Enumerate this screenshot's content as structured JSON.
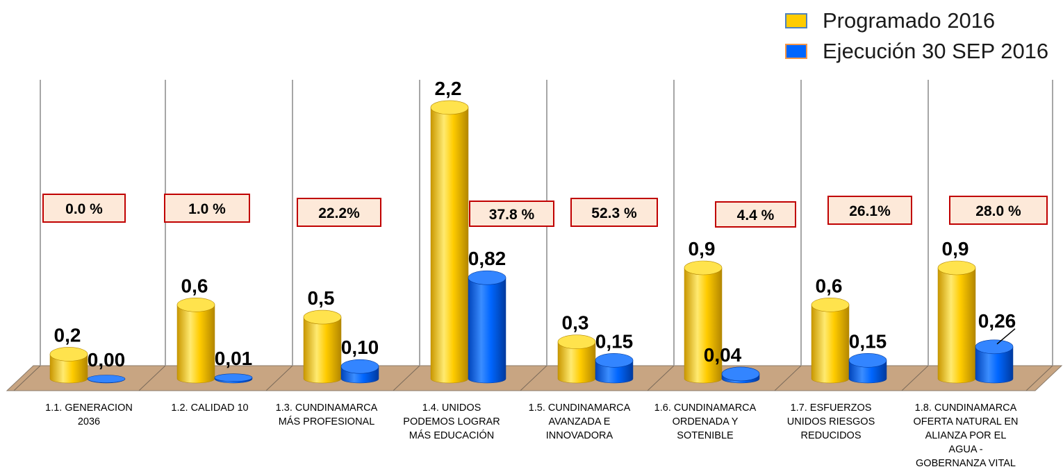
{
  "chart_data": {
    "type": "bar",
    "title": "",
    "xlabel": "",
    "ylabel": "",
    "ylim": [
      0,
      2.4
    ],
    "grid": false,
    "legend_position": "top-right",
    "categories": [
      "1.1. GENERACION 2036",
      "1.2. CALIDAD 10",
      "1.3. CUNDINAMARCA MÁS PROFESIONAL",
      "1.4. UNIDOS PODEMOS LOGRAR MÁS EDUCACIÓN",
      "1.5. CUNDINAMARCA AVANZADA E INNOVADORA",
      "1.6. CUNDINAMARCA ORDENADA Y SOTENIBLE",
      "1.7. ESFUERZOS UNIDOS RIESGOS REDUCIDOS",
      "1.8. CUNDINAMARCA OFERTA NATURAL EN ALIANZA POR EL AGUA - GOBERNANZA VITAL"
    ],
    "category_label_lines": [
      [
        "1.1. GENERACION",
        "2036"
      ],
      [
        "1.2. CALIDAD 10"
      ],
      [
        "1.3. CUNDINAMARCA",
        "MÁS PROFESIONAL"
      ],
      [
        "1.4. UNIDOS",
        "PODEMOS LOGRAR",
        "MÁS EDUCACIÓN"
      ],
      [
        "1.5. CUNDINAMARCA",
        "AVANZADA E",
        "INNOVADORA"
      ],
      [
        "1.6. CUNDINAMARCA",
        "ORDENADA Y",
        "SOTENIBLE"
      ],
      [
        "1.7. ESFUERZOS",
        "UNIDOS RIESGOS",
        "REDUCIDOS"
      ],
      [
        "1.8. CUNDINAMARCA",
        "OFERTA NATURAL EN",
        "ALIANZA POR EL",
        "AGUA -",
        "GOBERNANZA VITAL"
      ]
    ],
    "series": [
      {
        "name": "Programado 2016",
        "color": "#ffcc00",
        "values": [
          0.2,
          0.6,
          0.5,
          2.2,
          0.3,
          0.9,
          0.6,
          0.9
        ],
        "data_labels": [
          "0,2",
          "0,6",
          "0,5",
          "2,2",
          "0,3",
          "0,9",
          "0,6",
          "0,9"
        ]
      },
      {
        "name": "Ejecución 30 SEP 2016",
        "color": "#0066ff",
        "values": [
          0.0,
          0.01,
          0.1,
          0.82,
          0.15,
          0.04,
          0.15,
          0.26
        ],
        "data_labels": [
          "0,00",
          "0,01",
          "0,10",
          "0,82",
          "0,15",
          "0,04",
          "0,15",
          "0,26"
        ]
      }
    ],
    "annotations": [
      "0.0 %",
      "1.0 %",
      "22.2%",
      "37.8 %",
      "52.3 %",
      "4.4 %",
      "26.1%",
      "28.0 %"
    ]
  },
  "legend": {
    "items": [
      {
        "label": "Programado 2016",
        "fill": "#ffcc00",
        "border": "#4f81bd"
      },
      {
        "label": "Ejecución 30 SEP 2016",
        "fill": "#0066ff",
        "border": "#f79646"
      }
    ]
  }
}
